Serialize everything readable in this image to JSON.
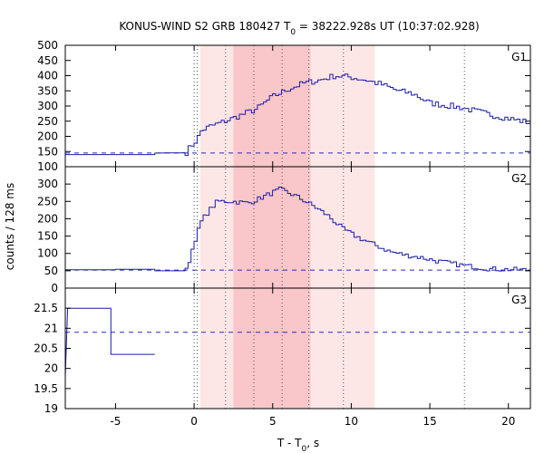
{
  "chart_data": {
    "type": "line",
    "title_parts": {
      "pre": "KONUS-WIND S2 GRB 180427 T",
      "sub": "0",
      "post": " = 38222.928s UT (10:37:02.928)"
    },
    "xlabel_parts": {
      "pre": "T - T",
      "sub": "0",
      "post": ", s"
    },
    "ylabel": "counts / 128 ms",
    "xlim": [
      -8.2,
      21.4
    ],
    "xticks": [
      -5,
      0,
      5,
      10,
      15,
      20
    ],
    "xtick_labels": [
      "-5",
      "0",
      "5",
      "10",
      "15",
      "20"
    ],
    "highlight_light": [
      0.4,
      11.5
    ],
    "highlight_dark": [
      2.5,
      7.4
    ],
    "vlines_dotted": [
      0.0,
      0.2,
      2.0,
      3.8,
      5.6,
      7.3,
      9.5,
      17.2
    ],
    "panels": [
      {
        "name": "G1",
        "ylim": [
          100,
          500
        ],
        "yticks": [
          100,
          150,
          200,
          250,
          300,
          350,
          400,
          450,
          500
        ],
        "ytick_labels": [
          "100",
          "150",
          "200",
          "250",
          "300",
          "350",
          "400",
          "450",
          "500"
        ],
        "background": 145,
        "profile": [
          [
            -8.2,
            140
          ],
          [
            -2.5,
            140
          ],
          [
            -2.4,
            145
          ],
          [
            -0.5,
            146
          ],
          [
            -0.3,
            160
          ],
          [
            0.2,
            190
          ],
          [
            0.5,
            220
          ],
          [
            1.0,
            232
          ],
          [
            2.0,
            250
          ],
          [
            3.0,
            270
          ],
          [
            4.0,
            290
          ],
          [
            5.0,
            330
          ],
          [
            6.0,
            355
          ],
          [
            7.0,
            375
          ],
          [
            8.0,
            385
          ],
          [
            9.0,
            400
          ],
          [
            10.0,
            395
          ],
          [
            11.0,
            385
          ],
          [
            12.0,
            370
          ],
          [
            13.0,
            350
          ],
          [
            14.0,
            340
          ],
          [
            15.0,
            310
          ],
          [
            17.0,
            295
          ],
          [
            19.0,
            270
          ],
          [
            21.4,
            245
          ]
        ],
        "noise": 10
      },
      {
        "name": "G2",
        "ylim": [
          0,
          350
        ],
        "yticks": [
          0,
          50,
          100,
          150,
          200,
          250,
          300
        ],
        "ytick_labels": [
          "0",
          "50",
          "100",
          "150",
          "200",
          "250",
          "300"
        ],
        "background": 52,
        "profile": [
          [
            -8.2,
            53
          ],
          [
            -5.0,
            54
          ],
          [
            -2.5,
            50
          ],
          [
            -0.5,
            50
          ],
          [
            -0.4,
            60
          ],
          [
            0.0,
            130
          ],
          [
            0.5,
            195
          ],
          [
            1.0,
            225
          ],
          [
            1.5,
            250
          ],
          [
            2.5,
            250
          ],
          [
            3.5,
            245
          ],
          [
            4.5,
            265
          ],
          [
            5.5,
            285
          ],
          [
            6.5,
            265
          ],
          [
            7.5,
            240
          ],
          [
            8.5,
            210
          ],
          [
            9.5,
            170
          ],
          [
            10.5,
            145
          ],
          [
            11.5,
            125
          ],
          [
            12.5,
            105
          ],
          [
            13.5,
            95
          ],
          [
            14.5,
            88
          ],
          [
            15.5,
            78
          ],
          [
            16.5,
            70
          ],
          [
            17.5,
            63
          ],
          [
            19.0,
            55
          ],
          [
            21.4,
            52
          ]
        ],
        "noise": 7
      },
      {
        "name": "G3",
        "ylim": [
          19,
          22
        ],
        "yticks": [
          19,
          19.5,
          20,
          20.5,
          21,
          21.5
        ],
        "ytick_labels": [
          "19",
          "19.5",
          "20",
          "20.5",
          "21",
          "21.5"
        ],
        "background": 20.9,
        "profile": [
          [
            -8.2,
            19.8
          ],
          [
            -8.05,
            21.5
          ],
          [
            -5.3,
            21.5
          ],
          [
            -5.3,
            20.35
          ],
          [
            -2.5,
            20.35
          ]
        ],
        "noise": 0
      }
    ]
  }
}
